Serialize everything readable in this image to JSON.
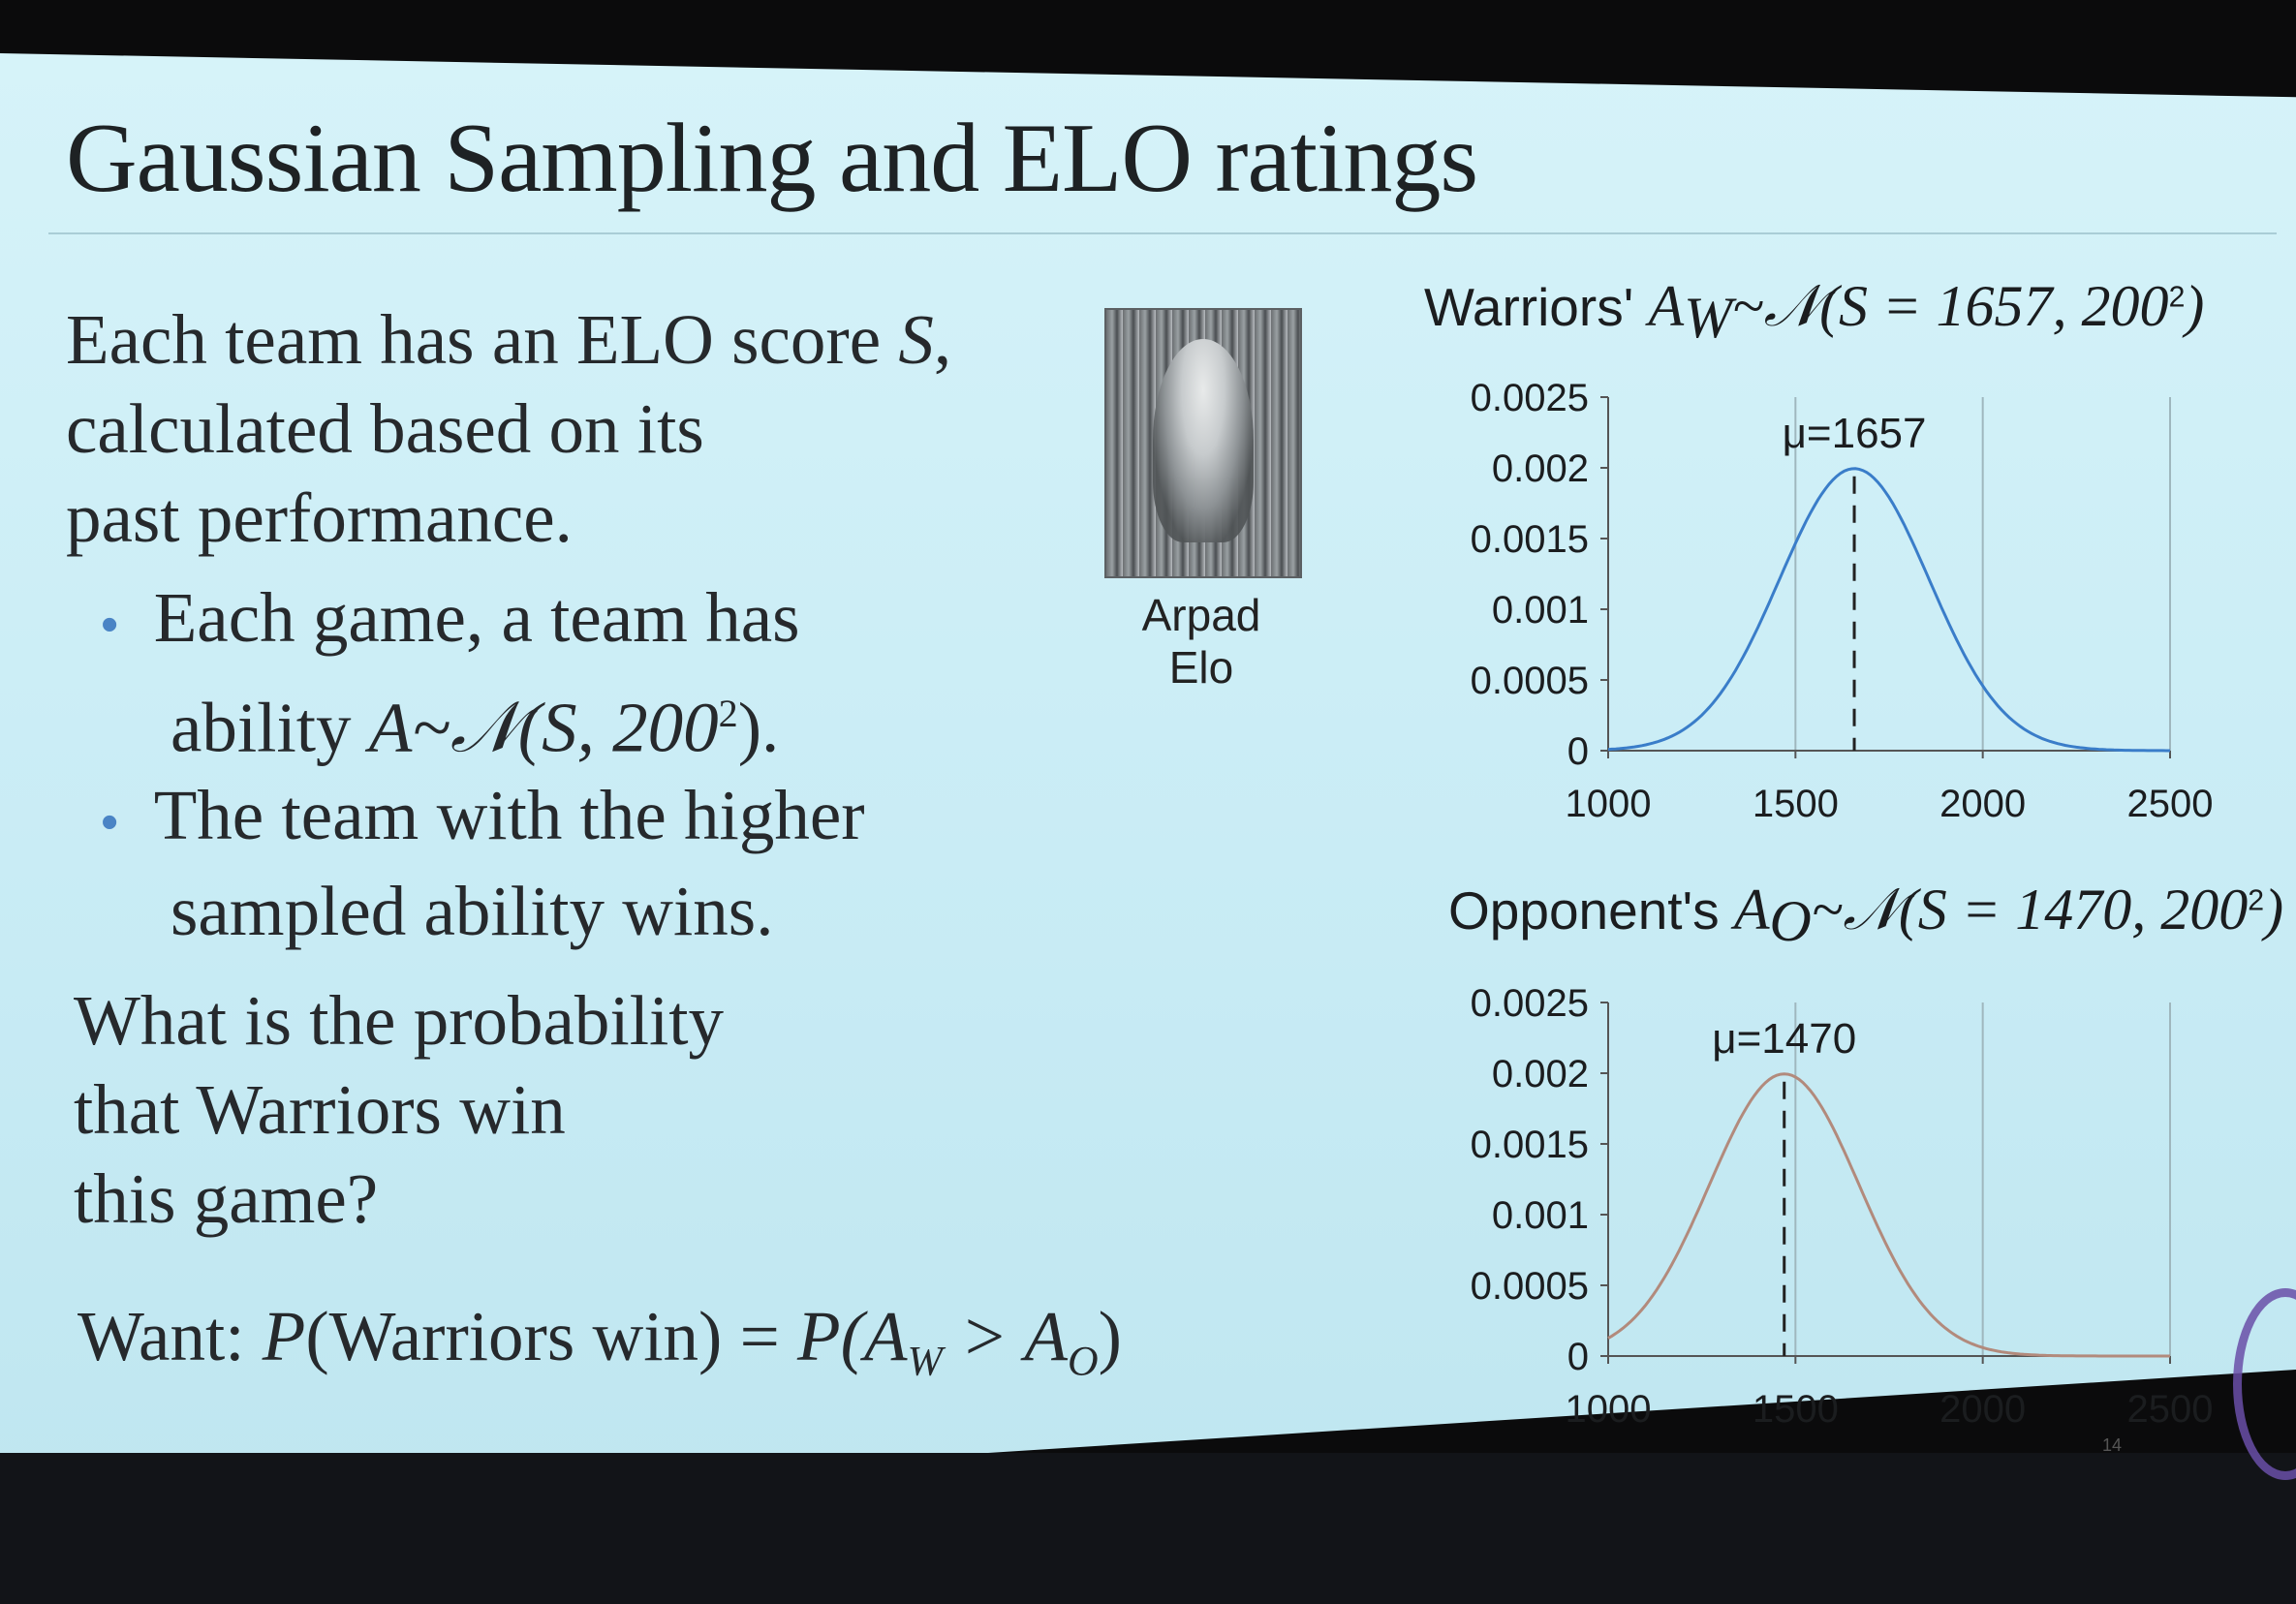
{
  "slide": {
    "title": "Gaussian Sampling and ELO ratings",
    "intro_lines": [
      "Each team has an ELO score",
      "calculated based on its",
      "past performance."
    ],
    "intro_var": "S",
    "bullet1": {
      "line1": "Each game, a team has",
      "line2_prefix": "ability ",
      "math": "A~𝒩(S, 200",
      "exp": "2",
      "suffix": ")."
    },
    "bullet2": {
      "line1": "The team with the higher",
      "line2": "sampled ability wins."
    },
    "question_lines": [
      "What is the probability",
      "that Warriors win",
      "this game?"
    ],
    "want": {
      "prefix": "Want: ",
      "p": "P",
      "mid": "(Warriors win) = ",
      "p2": "P",
      "a": "(A",
      "sub_w": "W",
      "gt": " > A",
      "sub_o": "O",
      "close": ")"
    },
    "portrait_caption": "Arpad Elo",
    "page_number": "14"
  },
  "chart_data": [
    {
      "type": "line",
      "title": {
        "prefix": "Warriors' ",
        "var": "A",
        "sub": "W",
        "dist": "~𝒩(S = 1657, 200",
        "exp": "2",
        "close": ")"
      },
      "mean": 1657,
      "sd": 200,
      "annotation": "μ=1657",
      "x_ticks": [
        "1000",
        "1500",
        "2000",
        "2500"
      ],
      "y_ticks": [
        "0",
        "0.0005",
        "0.001",
        "0.0015",
        "0.002",
        "0.0025"
      ],
      "xlim": [
        1000,
        2500
      ],
      "ylim": [
        0,
        0.0025
      ],
      "grid": true,
      "color": "#3a7dc9"
    },
    {
      "type": "line",
      "title": {
        "prefix": "Opponent's ",
        "var": "A",
        "sub": "O",
        "dist": "~𝒩(S = 1470, 200",
        "exp": "2",
        "close": ")"
      },
      "mean": 1470,
      "sd": 200,
      "annotation": "μ=1470",
      "x_ticks": [
        "1000",
        "1500",
        "2000",
        "2500"
      ],
      "y_ticks": [
        "0",
        "0.0005",
        "0.001",
        "0.0015",
        "0.002",
        "0.0025"
      ],
      "xlim": [
        1000,
        2500
      ],
      "ylim": [
        0,
        0.0025
      ],
      "grid": true,
      "color": "#b28a7c"
    }
  ]
}
